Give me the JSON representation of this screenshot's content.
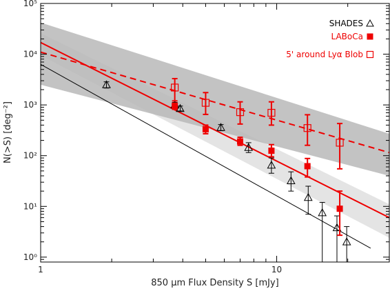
{
  "chart_data": {
    "type": "scatter",
    "title": "",
    "xlabel": "850 μm Flux Density S [mJy]",
    "ylabel": "N(>S) [deg⁻²]",
    "x_scale": "log",
    "y_scale": "log",
    "xlim": [
      1,
      30
    ],
    "ylim": [
      0.8,
      100000
    ],
    "x_ticks": [
      {
        "value": 1,
        "label": "1"
      },
      {
        "value": 10,
        "label": "10"
      }
    ],
    "y_ticks": [
      {
        "value": 1,
        "label": "10⁰"
      },
      {
        "value": 10,
        "label": "10¹"
      },
      {
        "value": 100,
        "label": "10²"
      },
      {
        "value": 1000,
        "label": "10³"
      },
      {
        "value": 10000,
        "label": "10⁴"
      },
      {
        "value": 100000,
        "label": "10⁵"
      }
    ],
    "grid": false,
    "legend_position": "top-right",
    "series": [
      {
        "name": "SHADES",
        "marker": "open-triangle",
        "color": "#000000",
        "points": [
          {
            "x": 1.9,
            "y": 2500,
            "lo": 2150,
            "hi": 2850
          },
          {
            "x": 3.7,
            "y": 1000,
            "lo": 880,
            "hi": 1120
          },
          {
            "x": 3.9,
            "y": 850,
            "lo": 760,
            "hi": 950
          },
          {
            "x": 5.8,
            "y": 360,
            "lo": 310,
            "hi": 410
          },
          {
            "x": 7.6,
            "y": 145,
            "lo": 115,
            "hi": 180
          },
          {
            "x": 9.5,
            "y": 65,
            "lo": 45,
            "hi": 90
          },
          {
            "x": 11.5,
            "y": 32,
            "lo": 20,
            "hi": 48
          },
          {
            "x": 13.6,
            "y": 15,
            "lo": 7,
            "hi": 25
          },
          {
            "x": 15.6,
            "y": 7.5,
            "lo": 0.8,
            "hi": 12
          },
          {
            "x": 18,
            "y": 3.8,
            "lo": 0.8,
            "hi": 6.5
          },
          {
            "x": 19.8,
            "y": 2,
            "lo": 0.8,
            "hi": 4
          }
        ]
      },
      {
        "name": "LABoCa",
        "marker": "filled-square",
        "color": "#ee0000",
        "points": [
          {
            "x": 3.7,
            "y": 950,
            "lo": 820,
            "hi": 1080
          },
          {
            "x": 5,
            "y": 330,
            "lo": 270,
            "hi": 400
          },
          {
            "x": 7,
            "y": 190,
            "lo": 160,
            "hi": 230
          },
          {
            "x": 9.5,
            "y": 125,
            "lo": 95,
            "hi": 165
          },
          {
            "x": 13.5,
            "y": 62,
            "lo": 38,
            "hi": 88
          },
          {
            "x": 18.5,
            "y": 9,
            "lo": 2.7,
            "hi": 20
          }
        ]
      },
      {
        "name": "5' around Lyα Blob",
        "marker": "open-square",
        "color": "#ee0000",
        "points": [
          {
            "x": 3.7,
            "y": 2200,
            "lo": 1200,
            "hi": 3300
          },
          {
            "x": 5,
            "y": 1100,
            "lo": 650,
            "hi": 1750
          },
          {
            "x": 7,
            "y": 720,
            "lo": 420,
            "hi": 1150
          },
          {
            "x": 9.5,
            "y": 700,
            "lo": 400,
            "hi": 1150
          },
          {
            "x": 13.5,
            "y": 350,
            "lo": 160,
            "hi": 640
          },
          {
            "x": 18.5,
            "y": 180,
            "lo": 55,
            "hi": 430
          }
        ]
      }
    ],
    "fits": [
      {
        "id": "shades-fit",
        "color": "#000000",
        "style": "solid",
        "x": [
          1,
          25
        ],
        "y": [
          6300,
          1.5
        ]
      },
      {
        "id": "laboca-fit",
        "color": "#ee0000",
        "style": "solid",
        "x": [
          1,
          30
        ],
        "y": [
          17000,
          6
        ]
      },
      {
        "id": "blob-fit",
        "color": "#ee0000",
        "style": "dashed",
        "x": [
          1,
          30
        ],
        "y": [
          11000,
          115
        ]
      }
    ],
    "bands": [
      {
        "id": "laboca-band",
        "color": "#e4e4e4",
        "upper": {
          "x": [
            1,
            30
          ],
          "y": [
            26000,
            11
          ]
        },
        "lower": {
          "x": [
            1,
            30
          ],
          "y": [
            9500,
            2.4
          ]
        }
      },
      {
        "id": "blob-band",
        "color": "#b8b8b8",
        "upper": {
          "x": [
            1,
            30
          ],
          "y": [
            42000,
            270
          ]
        },
        "lower": {
          "x": [
            1,
            30
          ],
          "y": [
            2500,
            40
          ]
        }
      }
    ]
  }
}
